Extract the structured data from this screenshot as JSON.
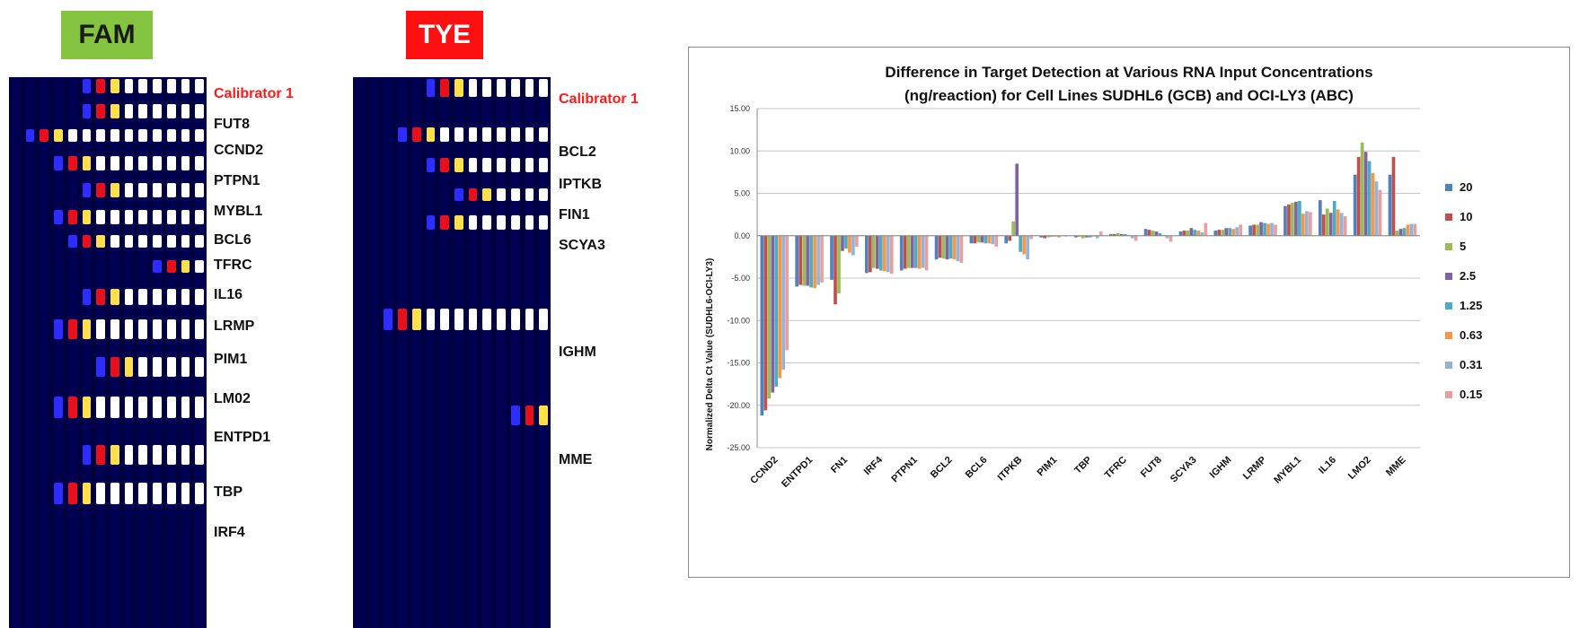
{
  "fam_panel": {
    "title": "FAM",
    "labels": [
      "Calibrator 1",
      "FUT8",
      "CCND2",
      "PTPN1",
      "MYBL1",
      "BCL6",
      "TFRC",
      "IL16",
      "LRMP",
      "PIM1",
      "LM02",
      "ENTPD1",
      "TBP",
      "IRF4"
    ]
  },
  "tye_panel": {
    "title": "TYE",
    "labels": [
      "Calibrator 1",
      "BCL2",
      "IPTKB",
      "FIN1",
      "SCYA3",
      "IGHM",
      "MME"
    ]
  },
  "colors": {
    "gel_bg": "#00003a",
    "lane": "#000052",
    "hot_white": "#ffffff",
    "hot_yellow": "#ffe04a",
    "hot_red": "#e8101a",
    "hot_blue": "#2d2dff",
    "calibrator_text": "#ff1a1a"
  },
  "chart_data": {
    "type": "bar",
    "title_line1": "Difference in Target Detection at Various RNA Input Concentrations",
    "title_line2": "(ng/reaction) for Cell Lines SUDHL6 (GCB) and OCI-LY3 (ABC)",
    "xlabel": "",
    "ylabel": "Normalized Delta Ct Value (SUDHL6-OCI-LY3)",
    "ylim": [
      -25,
      15
    ],
    "yticks": [
      "15.00",
      "10.00",
      "5.00",
      "0.00",
      "-5.00",
      "-10.00",
      "-15.00",
      "-20.00",
      "-25.00"
    ],
    "grid": true,
    "legend_position": "right",
    "categories": [
      "CCND2",
      "ENTPD1",
      "FN1",
      "IRF4",
      "PTPN1",
      "BCL2",
      "BCL6",
      "ITPKB",
      "PIM1",
      "TBP",
      "TFRC",
      "FUT8",
      "SCYA3",
      "IGHM",
      "LRMP",
      "MYBL1",
      "IL16",
      "LMO2",
      "MME"
    ],
    "series": [
      {
        "name": "20",
        "color": "#4f81bd",
        "values": [
          -21.2,
          -6.0,
          -5.2,
          -4.4,
          -4.1,
          -2.8,
          -0.9,
          -0.9,
          -0.2,
          -0.2,
          0.2,
          0.8,
          0.5,
          0.6,
          1.2,
          3.5,
          4.2,
          7.2,
          7.2
        ]
      },
      {
        "name": "10",
        "color": "#c0504d",
        "values": [
          -20.6,
          -5.8,
          -8.1,
          -4.3,
          -3.9,
          -2.6,
          -0.9,
          -0.6,
          -0.3,
          -0.1,
          0.2,
          0.7,
          0.6,
          0.7,
          1.3,
          3.7,
          2.5,
          9.3,
          9.3
        ]
      },
      {
        "name": "5",
        "color": "#9bbb59",
        "values": [
          -19.2,
          -5.9,
          -6.8,
          -3.8,
          -3.8,
          -2.7,
          -0.8,
          1.7,
          -0.2,
          -0.3,
          0.3,
          0.6,
          0.6,
          0.7,
          1.3,
          3.9,
          3.2,
          11.0,
          0.6
        ]
      },
      {
        "name": "2.5",
        "color": "#8064a2",
        "values": [
          -18.5,
          -5.9,
          -1.8,
          -3.9,
          -3.8,
          -2.8,
          -0.8,
          8.5,
          -0.1,
          -0.2,
          0.2,
          0.5,
          0.9,
          0.9,
          1.6,
          4.0,
          2.7,
          9.9,
          0.8
        ]
      },
      {
        "name": "1.25",
        "color": "#4bacc6",
        "values": [
          -17.8,
          -6.1,
          -1.5,
          -4.1,
          -3.8,
          -2.7,
          -0.9,
          -1.9,
          -0.1,
          -0.2,
          0.2,
          0.3,
          0.7,
          0.9,
          1.5,
          4.1,
          4.1,
          8.8,
          0.9
        ]
      },
      {
        "name": "0.63",
        "color": "#f79646",
        "values": [
          -16.8,
          -6.2,
          -2.0,
          -4.2,
          -3.9,
          -2.8,
          -0.9,
          -2.2,
          -0.2,
          -0.1,
          0.1,
          0.1,
          0.6,
          0.8,
          1.4,
          2.6,
          3.1,
          7.4,
          1.3
        ]
      },
      {
        "name": "0.31",
        "color": "#95b3d7",
        "values": [
          -15.8,
          -5.8,
          -2.3,
          -4.3,
          -3.8,
          -3.0,
          -1.0,
          -2.8,
          0.0,
          -0.3,
          -0.3,
          -0.3,
          0.4,
          1.0,
          1.5,
          2.9,
          2.7,
          6.4,
          1.4
        ]
      },
      {
        "name": "0.15",
        "color": "#e6a0a0",
        "values": [
          -13.5,
          -5.5,
          -1.3,
          -4.5,
          -4.1,
          -3.2,
          -1.3,
          -0.4,
          -0.1,
          0.5,
          -0.6,
          -0.7,
          1.5,
          1.3,
          1.3,
          2.8,
          2.3,
          5.4,
          1.4
        ]
      }
    ]
  }
}
